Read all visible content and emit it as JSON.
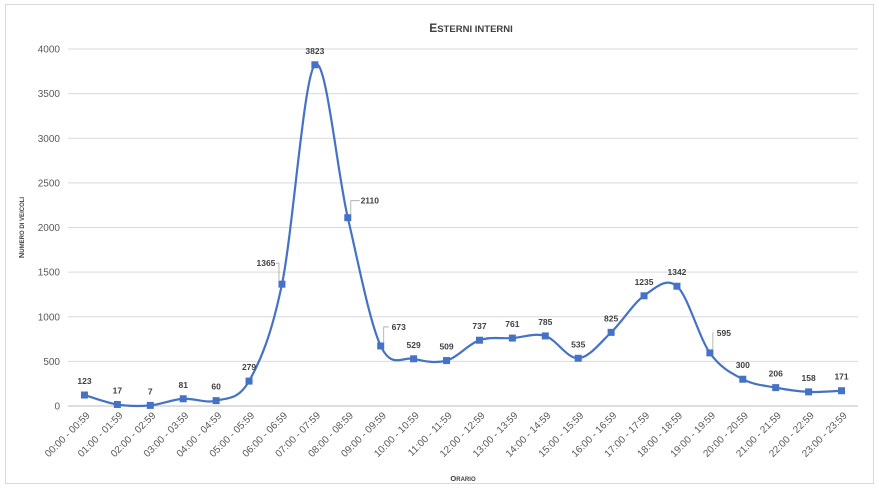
{
  "chart_data": {
    "type": "line",
    "title": "Esterni interni",
    "xlabel": "Orario",
    "ylabel": "Numero di veicoli",
    "ylim": [
      0,
      4000
    ],
    "yticks": [
      0,
      500,
      1000,
      1500,
      2000,
      2500,
      3000,
      3500,
      4000
    ],
    "grid": true,
    "smooth": true,
    "marker": "square",
    "line_color": "#4472c4",
    "categories": [
      "00:00 - 00:59",
      "01:00 - 01:59",
      "02:00 - 02:59",
      "03:00 - 03:59",
      "04:00 - 04:59",
      "05:00 - 05:59",
      "06:00 - 06:59",
      "07:00 - 07:59",
      "08:00 - 08:59",
      "09:00 - 09:59",
      "10:00 - 10:59",
      "11:00 - 11:59",
      "12:00 - 12:59",
      "13:00 - 13:59",
      "14:00 - 14:59",
      "15:00 - 15:59",
      "16:00 - 16:59",
      "17:00 - 17:59",
      "18:00 - 18:59",
      "19:00 - 19:59",
      "20:00 - 20:59",
      "21:00 - 21:59",
      "22:00 - 22:59",
      "23:00 - 23:59"
    ],
    "values": [
      123,
      17,
      7,
      81,
      60,
      279,
      1365,
      3823,
      2110,
      673,
      529,
      509,
      737,
      761,
      785,
      535,
      825,
      1235,
      1342,
      595,
      300,
      206,
      158,
      171
    ]
  }
}
